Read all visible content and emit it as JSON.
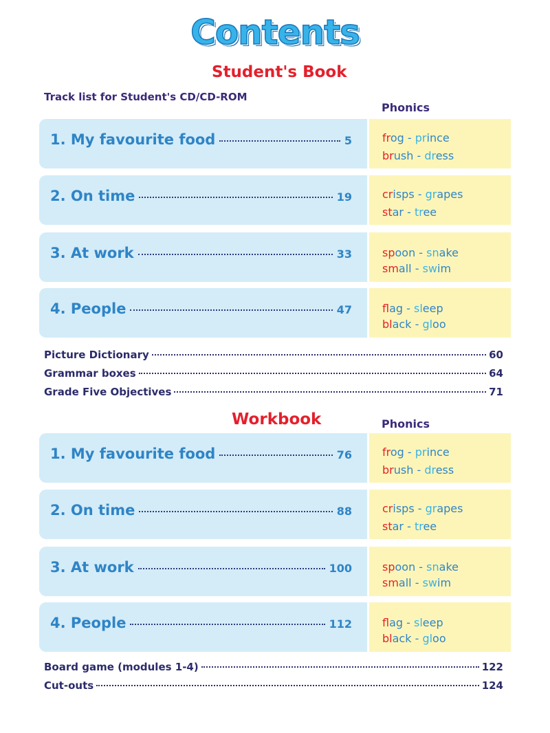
{
  "title": "Contents",
  "students_book": {
    "heading": "Student's Book",
    "track_label": "Track list for Student's CD/CD-ROM",
    "phonics_heading": "Phonics",
    "units": [
      {
        "title": "1. My favourite food",
        "page": "5",
        "phonics": [
          [
            "fr",
            "og",
            " - ",
            "pr",
            "ince"
          ],
          [
            "br",
            "ush",
            " - ",
            "dr",
            "ess"
          ]
        ]
      },
      {
        "title": "2. On time",
        "page": "19",
        "phonics": [
          [
            "cr",
            "isps",
            " - ",
            "gr",
            "apes"
          ],
          [
            "st",
            "ar",
            " - ",
            "tr",
            "ee"
          ]
        ]
      },
      {
        "title": "3. At work",
        "page": "33",
        "phonics": [
          [
            "sp",
            "oon",
            " - ",
            "sn",
            "ake"
          ],
          [
            "sm",
            "all",
            " - ",
            "sw",
            "im"
          ]
        ]
      },
      {
        "title": "4. People",
        "page": "47",
        "phonics": [
          [
            "fl",
            "ag",
            " - ",
            "sl",
            "eep"
          ],
          [
            "bl",
            "ack",
            " - ",
            "gl",
            "oo"
          ]
        ]
      }
    ],
    "extras": [
      {
        "label": "Picture Dictionary",
        "page": "60"
      },
      {
        "label": "Grammar boxes",
        "page": "64"
      },
      {
        "label": "Grade Five Objectives",
        "page": "71"
      }
    ]
  },
  "workbook": {
    "heading": "Workbook",
    "phonics_heading": "Phonics",
    "units": [
      {
        "title": "1. My favourite food",
        "page": "76",
        "phonics": [
          [
            "fr",
            "og",
            " - ",
            "pr",
            "ince"
          ],
          [
            "br",
            "ush",
            " - ",
            "dr",
            "ess"
          ]
        ]
      },
      {
        "title": "2. On time",
        "page": "88",
        "phonics": [
          [
            "cr",
            "isps",
            " - ",
            "gr",
            "apes"
          ],
          [
            "st",
            "ar",
            " - ",
            "tr",
            "ee"
          ]
        ]
      },
      {
        "title": "3. At work",
        "page": "100",
        "phonics": [
          [
            "sp",
            "oon",
            " - ",
            "sn",
            "ake"
          ],
          [
            "sm",
            "all",
            " - ",
            "sw",
            "im"
          ]
        ]
      },
      {
        "title": "4. People",
        "page": "112",
        "phonics": [
          [
            "fl",
            "ag",
            " - ",
            "sl",
            "eep"
          ],
          [
            "bl",
            "ack",
            " - ",
            "gl",
            "oo"
          ]
        ]
      }
    ],
    "extras": [
      {
        "label": "Board game (modules 1-4)",
        "page": "122"
      },
      {
        "label": "Cut-outs",
        "page": "124"
      }
    ]
  }
}
